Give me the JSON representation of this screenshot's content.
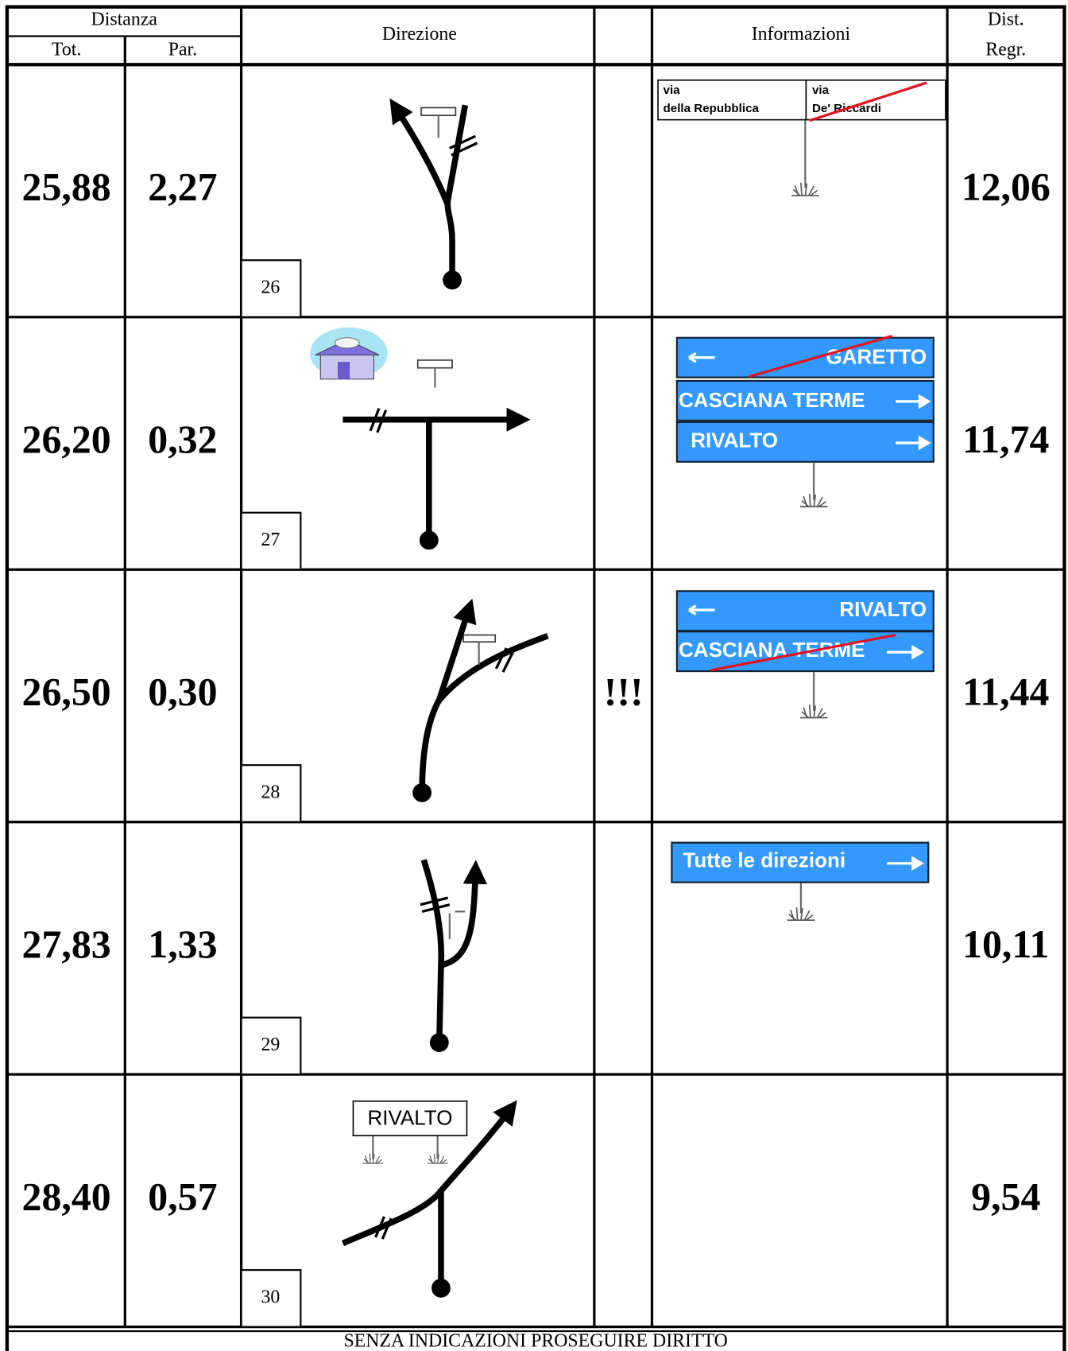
{
  "header": {
    "distanza": "Distanza",
    "tot": "Tot.",
    "par": "Par.",
    "direzione": "Direzione",
    "informazioni": "Informazioni",
    "dist": "Dist.",
    "regr": "Regr."
  },
  "rows": [
    {
      "tot": "25,88",
      "par": "2,27",
      "number": "26",
      "regr": "12,06",
      "signs": [
        [
          "via",
          "della Repubblica"
        ],
        [
          "via",
          "De' Riccardi"
        ]
      ]
    },
    {
      "tot": "26,20",
      "par": "0,32",
      "number": "27",
      "regr": "11,74",
      "signs": [
        "GARETTO",
        "CASCIANA TERME",
        "RIVALTO"
      ]
    },
    {
      "tot": "26,50",
      "par": "0,30",
      "number": "28",
      "regr": "11,44",
      "alert": "!!!",
      "signs": [
        "RIVALTO",
        "CASCIANA TERME"
      ]
    },
    {
      "tot": "27,83",
      "par": "1,33",
      "number": "29",
      "regr": "10,11",
      "signs": [
        "Tutte le direzioni"
      ]
    },
    {
      "tot": "28,40",
      "par": "0,57",
      "number": "30",
      "regr": "9,54",
      "direction_sign": "RIVALTO"
    }
  ],
  "footer": "SENZA INDICAZIONI PROSEGUIRE DIRITTO"
}
